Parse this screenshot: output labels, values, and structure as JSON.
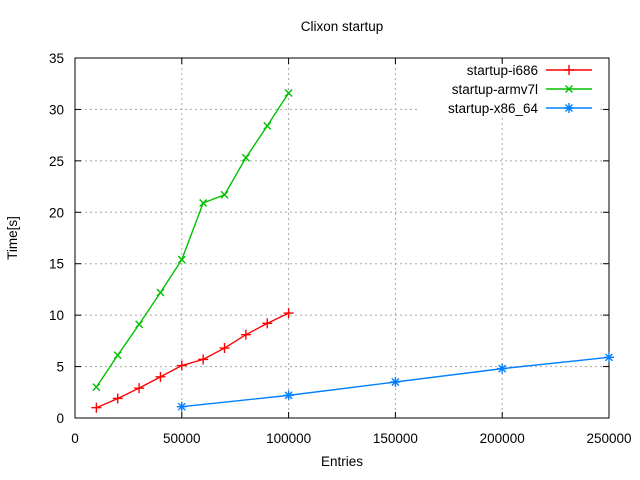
{
  "chart_data": {
    "type": "line",
    "title": "Clixon startup",
    "xlabel": "Entries",
    "ylabel": "Time[s]",
    "xlim": [
      0,
      250000
    ],
    "ylim": [
      0,
      35
    ],
    "x_ticks": [
      0,
      50000,
      100000,
      150000,
      200000,
      250000
    ],
    "y_ticks": [
      0,
      5,
      10,
      15,
      20,
      25,
      30,
      35
    ],
    "grid": true,
    "legend_position": "top-right-inside",
    "background_color": "#ffffff",
    "frame_color": "#000000",
    "grid_color": "#a8a8a8",
    "series": [
      {
        "name": "startup-i686",
        "color": "#ff0000",
        "marker": "plus",
        "x": [
          10000,
          20000,
          30000,
          40000,
          50000,
          60000,
          70000,
          80000,
          90000,
          100000
        ],
        "y": [
          1.0,
          1.9,
          2.9,
          4.0,
          5.1,
          5.7,
          6.8,
          8.1,
          9.2,
          10.2
        ]
      },
      {
        "name": "startup-armv7l",
        "color": "#00c000",
        "marker": "cross",
        "x": [
          10000,
          20000,
          30000,
          40000,
          50000,
          60000,
          70000,
          80000,
          90000,
          100000
        ],
        "y": [
          3.0,
          6.1,
          9.1,
          12.2,
          15.4,
          20.9,
          21.7,
          25.3,
          28.4,
          31.6
        ]
      },
      {
        "name": "startup-x86_64",
        "color": "#0080ff",
        "marker": "asterisk",
        "x": [
          50000,
          100000,
          150000,
          200000,
          250000
        ],
        "y": [
          1.1,
          2.2,
          3.5,
          4.8,
          5.9
        ]
      }
    ]
  }
}
